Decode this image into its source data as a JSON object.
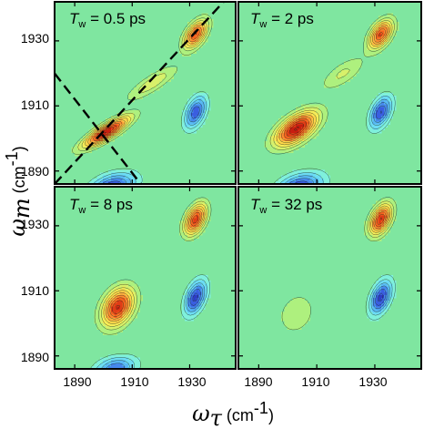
{
  "chart_data": {
    "type": "contour",
    "xlabel": {
      "symbol": "ω",
      "sub": "τ",
      "unit": "(cm",
      "unit_sup": "-1",
      "unit_close": ")"
    },
    "ylabel": {
      "symbol": "ω",
      "sub": "m",
      "unit": "(cm",
      "unit_sup": "-1",
      "unit_close": ")"
    },
    "xlim": [
      1883,
      1946
    ],
    "ylim": [
      1886,
      1942
    ],
    "xticks": [
      "1890",
      "1910",
      "1930"
    ],
    "yticks": [
      "1890",
      "1910",
      "1930"
    ],
    "xtick_values": [
      1890,
      1910,
      1930
    ],
    "ytick_values": [
      1890,
      1910,
      1930
    ],
    "levels": 12,
    "colors": {
      "background": "#7fe6a0",
      "positive": [
        "#aef07e",
        "#d8f06a",
        "#f7ec58",
        "#ffd64a",
        "#ffb040",
        "#ff8a30",
        "#f4621f",
        "#e03c16",
        "#c81e10"
      ],
      "negative": [
        "#7ff0dc",
        "#6cdcf4",
        "#58b8f4",
        "#4688ec",
        "#3a5ee0",
        "#2e3cc4"
      ]
    },
    "panels": [
      {
        "title_symbol": "T",
        "title_sub": "w",
        "title_value": " = 0.5 ps",
        "dashed_lines": [
          [
            [
              1883,
              1886
            ],
            [
              1946,
              1946
            ]
          ],
          [
            [
              1883,
              1920
            ],
            [
              1913,
              1886
            ]
          ]
        ],
        "peaks": [
          {
            "x": 1901,
            "y": 1902,
            "sx": 5.5,
            "sy": 3.2,
            "rho": 0.85,
            "amp": 1.0
          },
          {
            "x": 1932,
            "y": 1932,
            "sx": 2.8,
            "sy": 3.0,
            "rho": 0.55,
            "amp": 0.8
          },
          {
            "x": 1917,
            "y": 1917,
            "sx": 6.0,
            "sy": 3.6,
            "rho": 0.85,
            "amp": 0.28
          },
          {
            "x": 1932,
            "y": 1908,
            "sx": 2.6,
            "sy": 3.4,
            "rho": 0.45,
            "amp": -0.82
          },
          {
            "x": 1903,
            "y": 1885,
            "sx": 5.5,
            "sy": 3.0,
            "rho": 0.4,
            "amp": -0.85
          }
        ]
      },
      {
        "title_symbol": "T",
        "title_sub": "w",
        "title_value": " = 2 ps",
        "dashed_lines": [],
        "peaks": [
          {
            "x": 1903,
            "y": 1903,
            "sx": 5.0,
            "sy": 3.6,
            "rho": 0.6,
            "amp": 1.0
          },
          {
            "x": 1932,
            "y": 1932,
            "sx": 2.8,
            "sy": 3.0,
            "rho": 0.5,
            "amp": 0.82
          },
          {
            "x": 1919,
            "y": 1920,
            "sx": 5.0,
            "sy": 3.4,
            "rho": 0.7,
            "amp": 0.22
          },
          {
            "x": 1932,
            "y": 1908,
            "sx": 2.6,
            "sy": 3.4,
            "rho": 0.45,
            "amp": -0.85
          },
          {
            "x": 1904,
            "y": 1885,
            "sx": 5.5,
            "sy": 3.0,
            "rho": 0.35,
            "amp": -0.85
          }
        ]
      },
      {
        "title_symbol": "T",
        "title_sub": "w",
        "title_value": " = 8 ps",
        "dashed_lines": [],
        "peaks": [
          {
            "x": 1905,
            "y": 1905,
            "sx": 3.8,
            "sy": 4.0,
            "rho": 0.35,
            "amp": 0.9
          },
          {
            "x": 1932,
            "y": 1932,
            "sx": 2.6,
            "sy": 3.2,
            "rho": 0.45,
            "amp": 0.86
          },
          {
            "x": 1932,
            "y": 1908,
            "sx": 2.6,
            "sy": 3.6,
            "rho": 0.45,
            "amp": -0.9
          },
          {
            "x": 1904,
            "y": 1886,
            "sx": 5.0,
            "sy": 2.6,
            "rho": 0.3,
            "amp": -0.7
          }
        ]
      },
      {
        "title_symbol": "T",
        "title_sub": "w",
        "title_value": " = 32 ps",
        "dashed_lines": [],
        "peaks": [
          {
            "x": 1903,
            "y": 1903,
            "sx": 4.5,
            "sy": 4.5,
            "rho": 0.2,
            "amp": 0.18
          },
          {
            "x": 1932,
            "y": 1932,
            "sx": 2.6,
            "sy": 3.2,
            "rho": 0.45,
            "amp": 0.9
          },
          {
            "x": 1932,
            "y": 1908,
            "sx": 2.6,
            "sy": 3.6,
            "rho": 0.45,
            "amp": -0.9
          }
        ]
      }
    ]
  }
}
